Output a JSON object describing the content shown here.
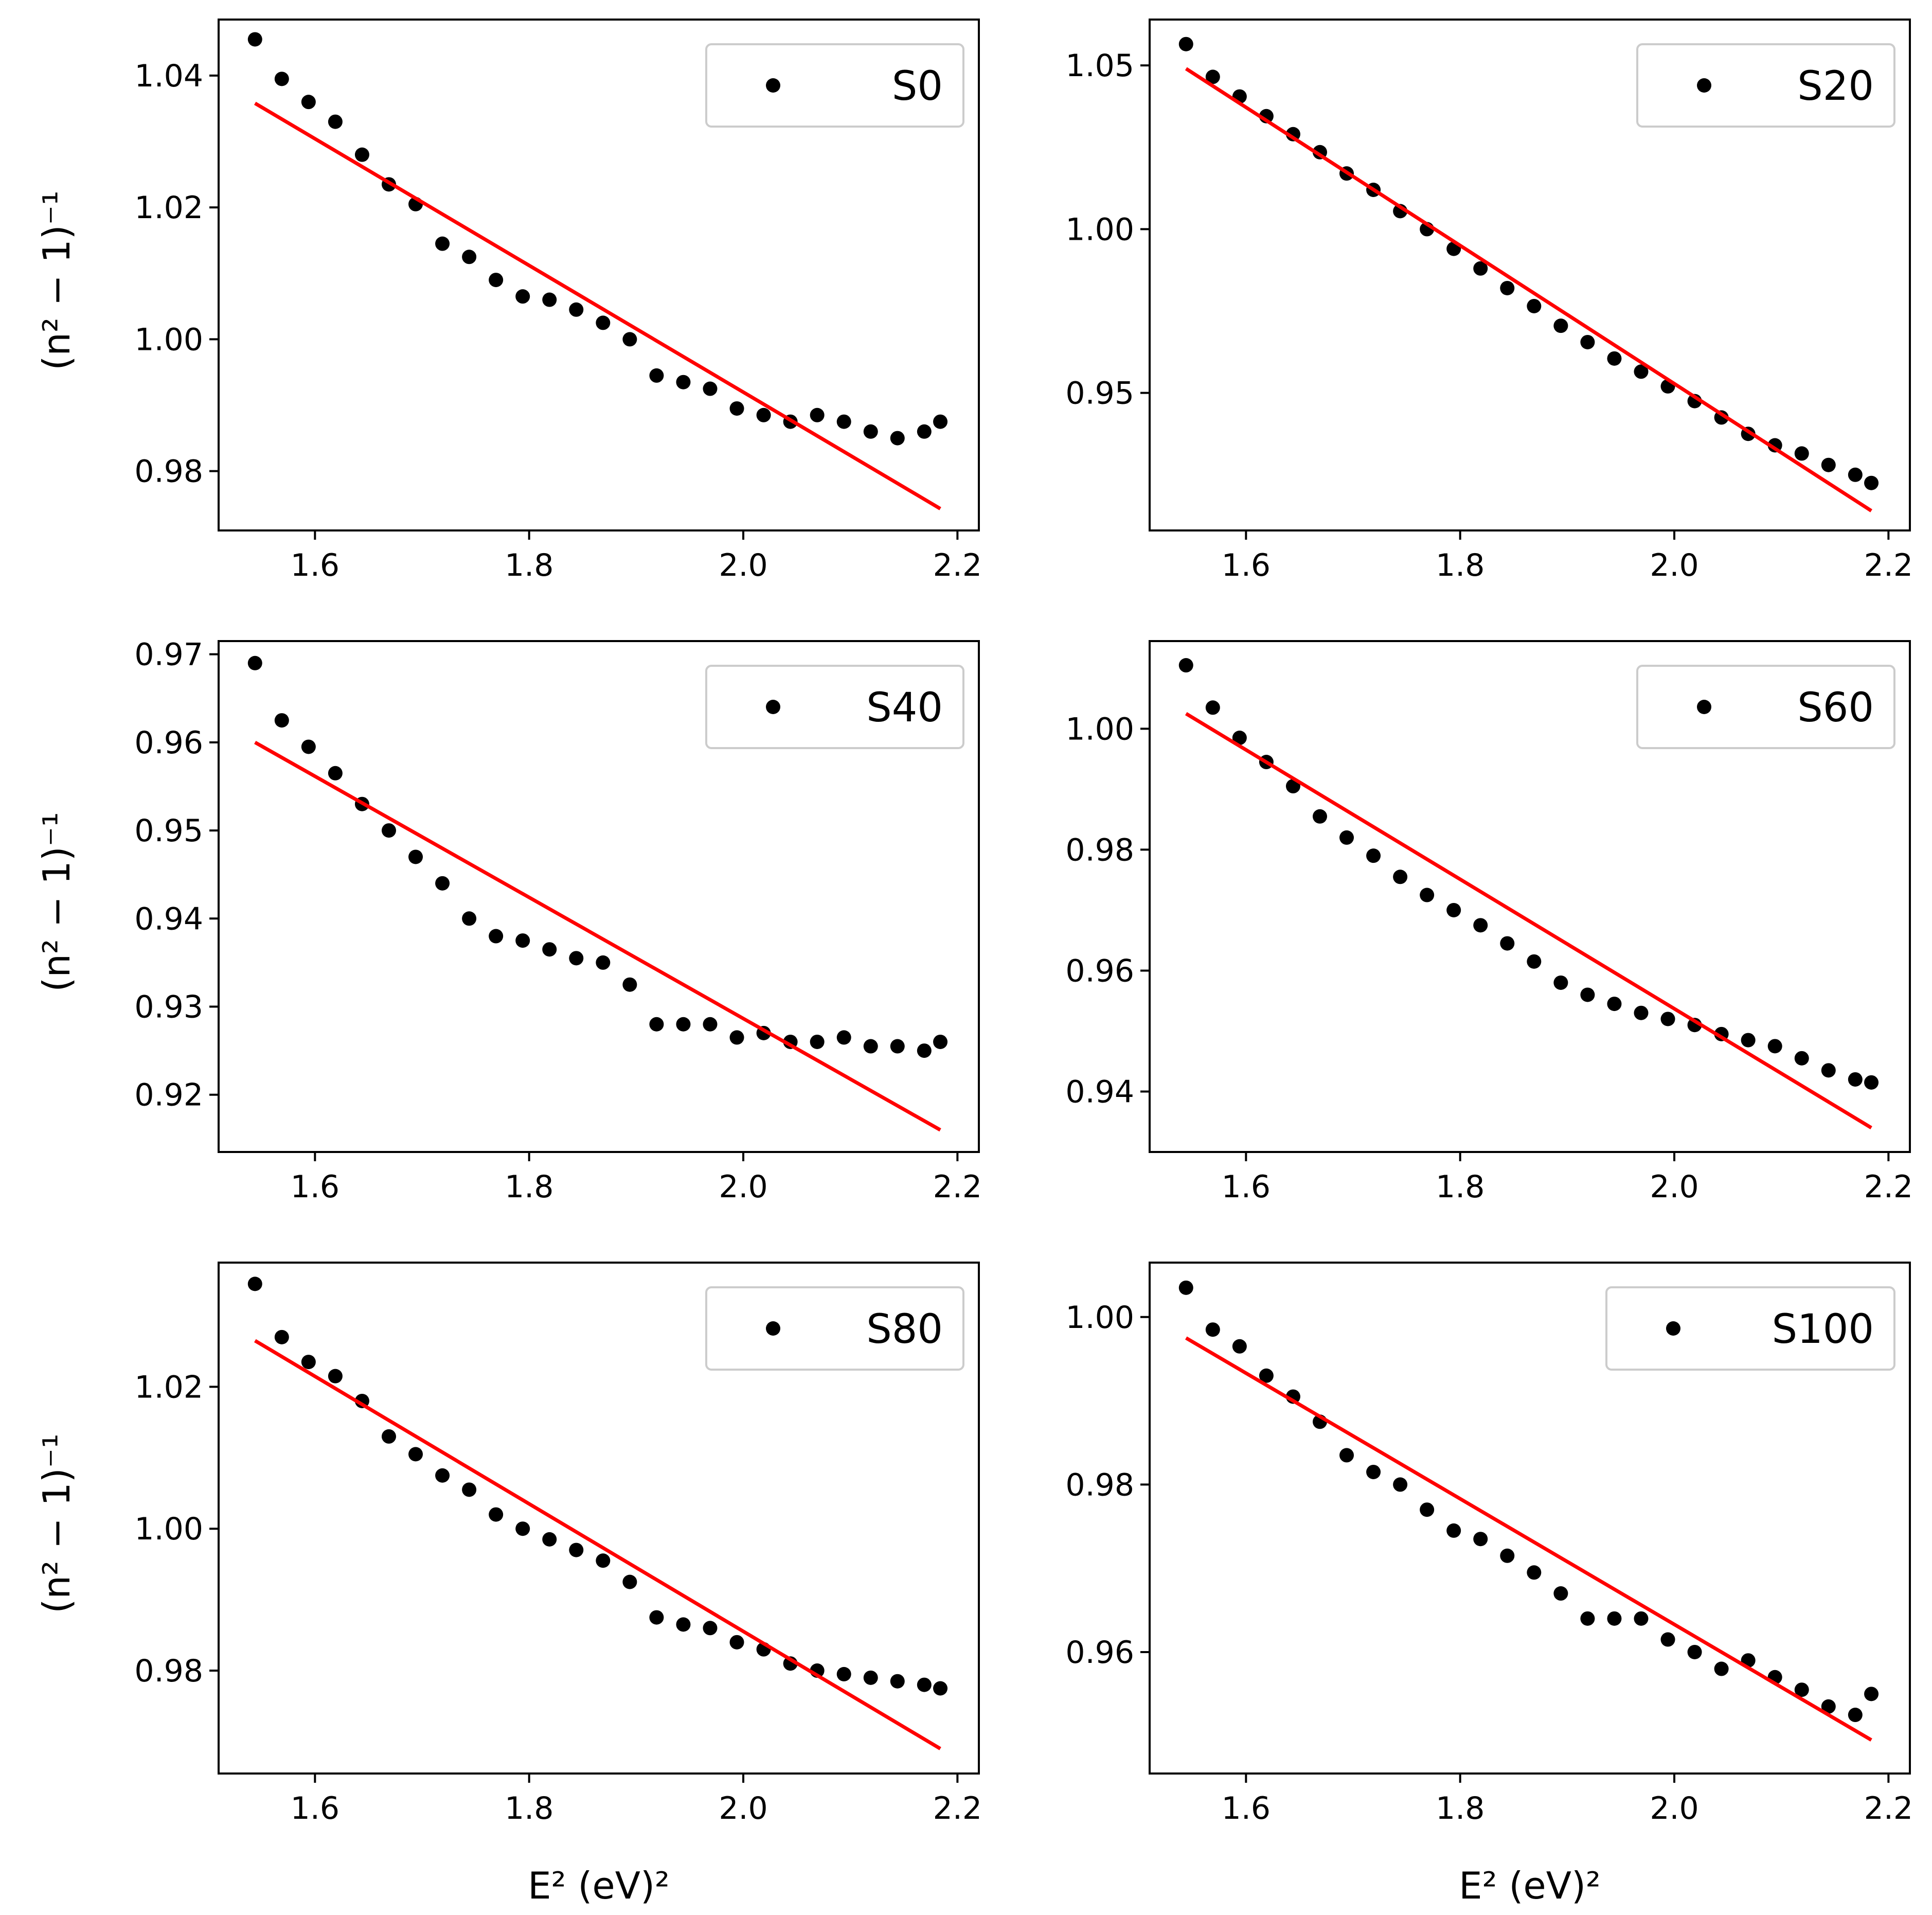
{
  "figure": {
    "ylabel_left": "(n² − 1)⁻¹",
    "xlabel_bottom": "E² (eV)²"
  },
  "colors": {
    "point": "#000000",
    "fit_line": "#ff0000",
    "axes": "#000000",
    "legend_border": "#cccccc"
  },
  "chart_data": [
    {
      "type": "scatter",
      "name": "S0",
      "legend": "S0",
      "xlim": [
        1.51,
        2.22
      ],
      "ylim": [
        0.971,
        1.0485
      ],
      "xticks": [
        "1.6",
        "1.8",
        "2.0",
        "2.2"
      ],
      "yticks": [
        "0.98",
        "1.00",
        "1.02",
        "1.04"
      ],
      "x": [
        1.544,
        1.569,
        1.594,
        1.619,
        1.644,
        1.669,
        1.694,
        1.719,
        1.744,
        1.769,
        1.794,
        1.819,
        1.844,
        1.869,
        1.894,
        1.919,
        1.944,
        1.969,
        1.994,
        2.019,
        2.044,
        2.069,
        2.094,
        2.119,
        2.144,
        2.169,
        2.184
      ],
      "y": [
        1.0455,
        1.0395,
        1.036,
        1.033,
        1.028,
        1.0235,
        1.0205,
        1.0145,
        1.0125,
        1.009,
        1.0065,
        1.006,
        1.0045,
        1.0025,
        1.0,
        0.9945,
        0.9935,
        0.9925,
        0.9895,
        0.9885,
        0.9875,
        0.9885,
        0.9875,
        0.986,
        0.985,
        0.986,
        0.9875
      ],
      "fit": {
        "x": [
          1.544,
          2.184
        ],
        "y": [
          1.0358,
          0.9743
        ]
      }
    },
    {
      "type": "scatter",
      "name": "S20",
      "legend": "S20",
      "xlim": [
        1.51,
        2.22
      ],
      "ylim": [
        0.908,
        1.064
      ],
      "xticks": [
        "1.6",
        "1.8",
        "2.0",
        "2.2"
      ],
      "yticks": [
        "0.95",
        "1.00",
        "1.05"
      ],
      "x": [
        1.544,
        1.569,
        1.594,
        1.619,
        1.644,
        1.669,
        1.694,
        1.719,
        1.744,
        1.769,
        1.794,
        1.819,
        1.844,
        1.869,
        1.894,
        1.919,
        1.944,
        1.969,
        1.994,
        2.019,
        2.044,
        2.069,
        2.094,
        2.119,
        2.144,
        2.169,
        2.184
      ],
      "y": [
        1.0565,
        1.0465,
        1.0405,
        1.0345,
        1.029,
        1.0235,
        1.017,
        1.012,
        1.0055,
        1.0,
        0.994,
        0.988,
        0.982,
        0.9765,
        0.9705,
        0.9655,
        0.9605,
        0.9565,
        0.952,
        0.9475,
        0.9425,
        0.9375,
        0.934,
        0.9315,
        0.928,
        0.925,
        0.9225
      ],
      "fit": {
        "x": [
          1.544,
          2.184
        ],
        "y": [
          1.049,
          0.914
        ]
      }
    },
    {
      "type": "scatter",
      "name": "S40",
      "legend": "S40",
      "xlim": [
        1.51,
        2.22
      ],
      "ylim": [
        0.9135,
        0.9715
      ],
      "xticks": [
        "1.6",
        "1.8",
        "2.0",
        "2.2"
      ],
      "yticks": [
        "0.92",
        "0.93",
        "0.94",
        "0.95",
        "0.96",
        "0.97"
      ],
      "x": [
        1.544,
        1.569,
        1.594,
        1.619,
        1.644,
        1.669,
        1.694,
        1.719,
        1.744,
        1.769,
        1.794,
        1.819,
        1.844,
        1.869,
        1.894,
        1.919,
        1.944,
        1.969,
        1.994,
        2.019,
        2.044,
        2.069,
        2.094,
        2.119,
        2.144,
        2.169,
        2.184
      ],
      "y": [
        0.969,
        0.9625,
        0.9595,
        0.9565,
        0.953,
        0.95,
        0.947,
        0.944,
        0.94,
        0.938,
        0.9375,
        0.9365,
        0.9355,
        0.935,
        0.9325,
        0.928,
        0.928,
        0.928,
        0.9265,
        0.927,
        0.926,
        0.926,
        0.9265,
        0.9255,
        0.9255,
        0.925,
        0.926
      ],
      "fit": {
        "x": [
          1.544,
          2.184
        ],
        "y": [
          0.96,
          0.916
        ]
      }
    },
    {
      "type": "scatter",
      "name": "S60",
      "legend": "S60",
      "xlim": [
        1.51,
        2.22
      ],
      "ylim": [
        0.93,
        1.0145
      ],
      "xticks": [
        "1.6",
        "1.8",
        "2.0",
        "2.2"
      ],
      "yticks": [
        "0.94",
        "0.96",
        "0.98",
        "1.00"
      ],
      "x": [
        1.544,
        1.569,
        1.594,
        1.619,
        1.644,
        1.669,
        1.694,
        1.719,
        1.744,
        1.769,
        1.794,
        1.819,
        1.844,
        1.869,
        1.894,
        1.919,
        1.944,
        1.969,
        1.994,
        2.019,
        2.044,
        2.069,
        2.094,
        2.119,
        2.144,
        2.169,
        2.184
      ],
      "y": [
        1.0105,
        1.0035,
        0.9985,
        0.9945,
        0.9905,
        0.9855,
        0.982,
        0.979,
        0.9755,
        0.9725,
        0.97,
        0.9675,
        0.9645,
        0.9615,
        0.958,
        0.956,
        0.9545,
        0.953,
        0.952,
        0.951,
        0.9495,
        0.9485,
        0.9475,
        0.9455,
        0.9435,
        0.942,
        0.9415
      ],
      "fit": {
        "x": [
          1.544,
          2.184
        ],
        "y": [
          1.0025,
          0.934
        ]
      }
    },
    {
      "type": "scatter",
      "name": "S80",
      "legend": "S80",
      "xlim": [
        1.51,
        2.22
      ],
      "ylim": [
        0.9655,
        1.0375
      ],
      "xticks": [
        "1.6",
        "1.8",
        "2.0",
        "2.2"
      ],
      "yticks": [
        "0.98",
        "1.00",
        "1.02"
      ],
      "x": [
        1.544,
        1.569,
        1.594,
        1.619,
        1.644,
        1.669,
        1.694,
        1.719,
        1.744,
        1.769,
        1.794,
        1.819,
        1.844,
        1.869,
        1.894,
        1.919,
        1.944,
        1.969,
        1.994,
        2.019,
        2.044,
        2.069,
        2.094,
        2.119,
        2.144,
        2.169,
        2.184
      ],
      "y": [
        1.0345,
        1.027,
        1.0235,
        1.0215,
        1.018,
        1.013,
        1.0105,
        1.0075,
        1.0055,
        1.002,
        1.0,
        0.9985,
        0.997,
        0.9955,
        0.9925,
        0.9875,
        0.9865,
        0.986,
        0.984,
        0.983,
        0.981,
        0.98,
        0.9795,
        0.979,
        0.9785,
        0.978,
        0.9775
      ],
      "fit": {
        "x": [
          1.544,
          2.184
        ],
        "y": [
          1.0265,
          0.969
        ]
      }
    },
    {
      "type": "scatter",
      "name": "S100",
      "legend": "S100",
      "xlim": [
        1.51,
        2.22
      ],
      "ylim": [
        0.9455,
        1.0065
      ],
      "xticks": [
        "1.6",
        "1.8",
        "2.0",
        "2.2"
      ],
      "yticks": [
        "0.96",
        "0.98",
        "1.00"
      ],
      "x": [
        1.544,
        1.569,
        1.594,
        1.619,
        1.644,
        1.669,
        1.694,
        1.719,
        1.744,
        1.769,
        1.794,
        1.819,
        1.844,
        1.869,
        1.894,
        1.919,
        1.944,
        1.969,
        1.994,
        2.019,
        2.044,
        2.069,
        2.094,
        2.119,
        2.144,
        2.169,
        2.184
      ],
      "y": [
        1.0035,
        0.9985,
        0.9965,
        0.993,
        0.9905,
        0.9875,
        0.9835,
        0.9815,
        0.98,
        0.977,
        0.9745,
        0.9735,
        0.9715,
        0.9695,
        0.967,
        0.964,
        0.964,
        0.964,
        0.9615,
        0.96,
        0.958,
        0.959,
        0.957,
        0.9555,
        0.9535,
        0.9525,
        0.955
      ],
      "fit": {
        "x": [
          1.544,
          2.184
        ],
        "y": [
          0.9975,
          0.9495
        ]
      }
    }
  ]
}
